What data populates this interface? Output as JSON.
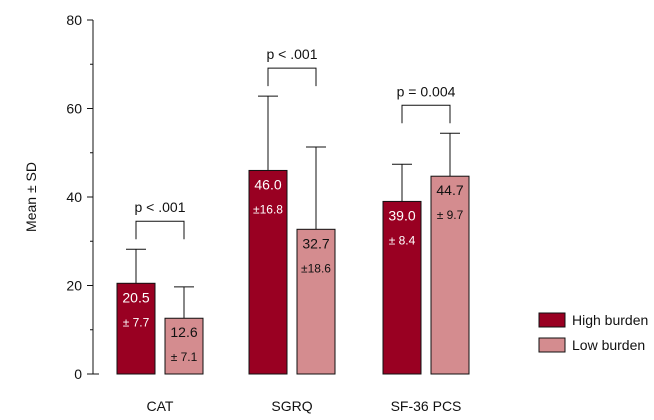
{
  "chart_data": {
    "type": "bar",
    "categories": [
      "CAT",
      "SGRQ",
      "SF-36 PCS"
    ],
    "ylabel": "Mean ± SD",
    "xlabel": "",
    "ylim": [
      0,
      80
    ],
    "yticks": [
      0,
      20,
      40,
      60,
      80
    ],
    "grid": false,
    "legend_position": "right",
    "series": [
      {
        "name": "High burden",
        "color": "#990022",
        "values": [
          20.5,
          46.0,
          39.0
        ],
        "sd": [
          7.7,
          16.8,
          8.4
        ],
        "value_labels": [
          "20.5",
          "46.0",
          "39.0"
        ],
        "sd_labels": [
          "± 7.7",
          "±16.8",
          "± 8.4"
        ]
      },
      {
        "name": "Low burden",
        "color": "#d48c8f",
        "values": [
          12.6,
          32.7,
          44.7
        ],
        "sd": [
          7.1,
          18.6,
          9.7
        ],
        "value_labels": [
          "12.6",
          "32.7",
          "44.7"
        ],
        "sd_labels": [
          "± 7.1",
          "±18.6",
          "± 9.7"
        ]
      }
    ],
    "significance": [
      "p < .001",
      "p < .001",
      "p = 0.004"
    ]
  }
}
